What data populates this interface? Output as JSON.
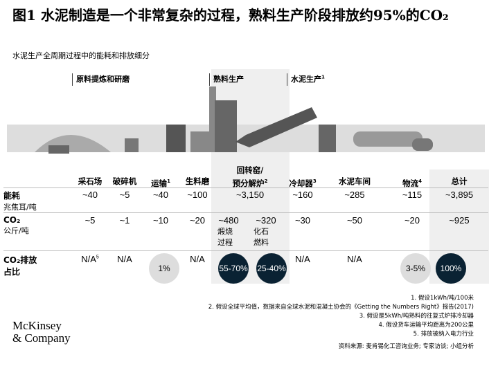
{
  "title": "图1 水泥制造是一个非常复杂的过程，熟料生产阶段排放约95%的CO₂",
  "subtitle": "水泥生产全周期过程中的能耗和排放细分",
  "stages": [
    {
      "label": "原料提炼和研磨"
    },
    {
      "label": "熟料生产"
    },
    {
      "label": "水泥生产",
      "sup": "1"
    }
  ],
  "columns": [
    {
      "label": "采石场",
      "sup": "",
      "energy": "~40",
      "co2": "~5",
      "share": "N/A",
      "share_sup": "5",
      "style": "text"
    },
    {
      "label": "破碎机",
      "sup": "",
      "energy": "~5",
      "co2": "~1",
      "share": "N/A",
      "style": "text"
    },
    {
      "label": "运输",
      "sup": "1",
      "energy": "~40",
      "co2": "~10",
      "share": "1%",
      "style": "light"
    },
    {
      "label": "生料磨",
      "sup": "",
      "energy": "~100",
      "co2": "~20",
      "share": "N/A",
      "style": "text"
    },
    {
      "label_line1": "回转窑/",
      "label_line2": "预分解炉",
      "sup": "2",
      "energy": "~3,150",
      "co2_a": "~480",
      "co2_a_note": "煅烧过程",
      "co2_b": "~320",
      "co2_b_note": "化石燃料",
      "share_a": "55-70%",
      "share_b": "25-40%",
      "style": "dark"
    },
    {
      "label": "冷却器",
      "sup": "3",
      "energy": "~160",
      "co2": "~30",
      "share": "N/A",
      "style": "text"
    },
    {
      "label": "水泥车间",
      "sup": "",
      "energy": "~285",
      "co2": "~50",
      "share": "N/A",
      "style": "text"
    },
    {
      "label": "物流",
      "sup": "4",
      "energy": "~115",
      "co2": "~20",
      "share": "3-5%",
      "style": "light"
    },
    {
      "label": "总计",
      "sup": "",
      "energy": "~3,895",
      "co2": "~925",
      "share": "100%",
      "style": "dark"
    }
  ],
  "rows": {
    "energy": "能耗",
    "energy_unit": "兆焦耳/吨",
    "co2": "CO₂",
    "co2_unit": "公斤/吨",
    "share": "CO₂排放占比"
  },
  "footnotes": [
    "1. 假设1kWh/吨/100米",
    "2. 假设全球平均值，数据来自全球水泥和混凝土协会的《Getting the Numbers Right》报告(2017)",
    "3. 假设是5kWh/吨熟料的往复式炉排冷却器",
    "4. 假设货车运输平均距离为200公里",
    "5. 排放被纳入电力行业"
  ],
  "source": "资料来源: 麦肯锡化工咨询业务; 专家访谈; 小组分析",
  "logo": {
    "line1": "McKinsey",
    "line2": "& Company"
  },
  "colors": {
    "dark": "#0a2233",
    "light": "#dddddd",
    "shade": "#efefef"
  }
}
